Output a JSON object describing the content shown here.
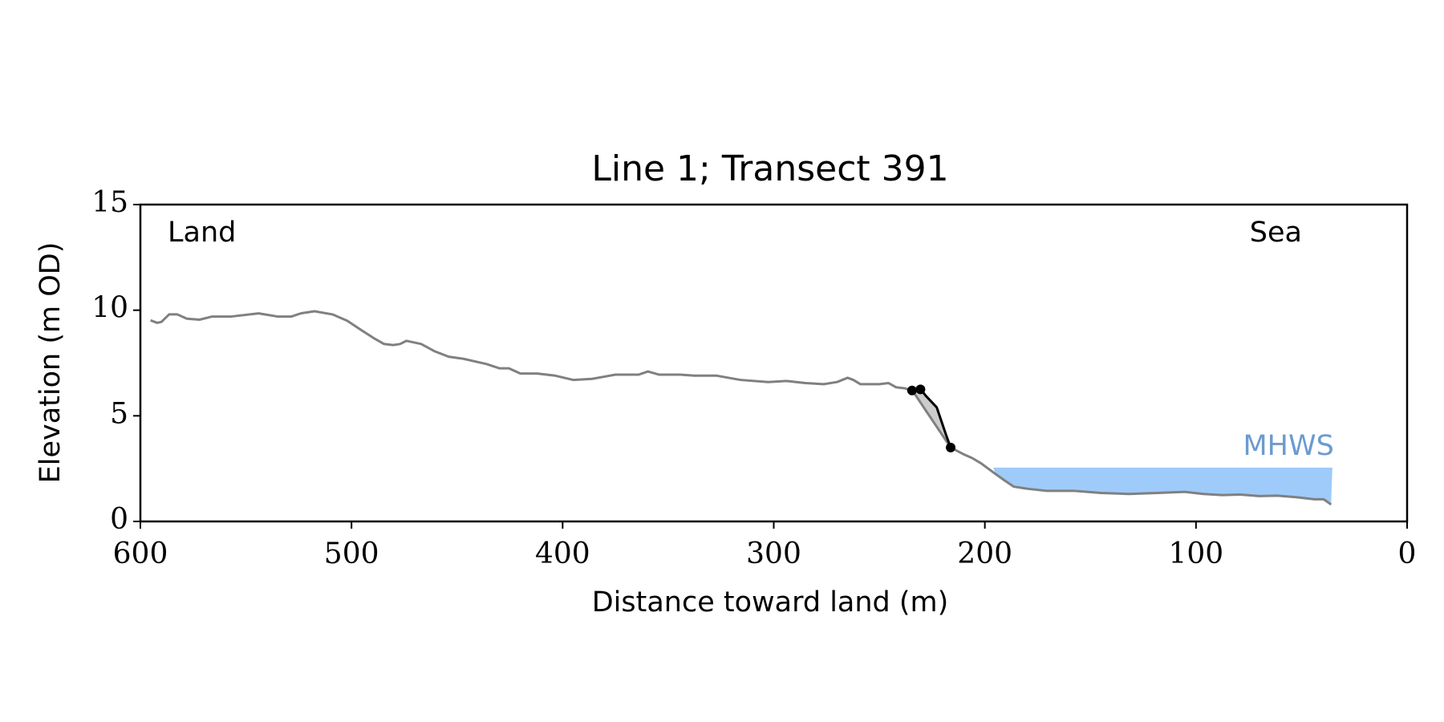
{
  "chart_data": {
    "type": "line",
    "title": "Line 1; Transect 391",
    "xlabel": "Distance toward land (m)",
    "ylabel": "Elevation (m OD)",
    "xlim": [
      600,
      0
    ],
    "ylim": [
      0,
      15
    ],
    "xticks": [
      600,
      500,
      400,
      300,
      200,
      100,
      0
    ],
    "yticks": [
      0,
      5,
      10,
      15
    ],
    "annotations": [
      "Land",
      "Sea"
    ],
    "profile": {
      "color": "#808080",
      "x": [
        595.2,
        592,
        590,
        586.4,
        582.5,
        578,
        572,
        566,
        557,
        544,
        535,
        528.5,
        524,
        517.5,
        509,
        502,
        496,
        489,
        484.6,
        480.3,
        477,
        474,
        467,
        460.5,
        454,
        447,
        436,
        430,
        425.5,
        420,
        412,
        403.5,
        395,
        386,
        375,
        364,
        359.6,
        354.4,
        344.3,
        337.7,
        327,
        315.8,
        302.6,
        294,
        285,
        276.3,
        270,
        265,
        262.3,
        259,
        250,
        245.6,
        242,
        237.7,
        234,
        216.2,
        210.5,
        206,
        201.8,
        195,
        190.8,
        186.4,
        180,
        171,
        158,
        145,
        131.6,
        118.4,
        105.3,
        96.5,
        87.7,
        79,
        70,
        61.4,
        52.6,
        43.9,
        39.5,
        36
      ],
      "values": [
        9.52,
        9.4,
        9.45,
        9.8,
        9.8,
        9.6,
        9.55,
        9.7,
        9.7,
        9.85,
        9.7,
        9.7,
        9.85,
        9.95,
        9.8,
        9.5,
        9.1,
        8.65,
        8.4,
        8.35,
        8.4,
        8.55,
        8.4,
        8.05,
        7.8,
        7.7,
        7.45,
        7.25,
        7.25,
        7.0,
        7.0,
        6.9,
        6.7,
        6.75,
        6.95,
        6.95,
        7.1,
        6.95,
        6.95,
        6.9,
        6.9,
        6.7,
        6.6,
        6.65,
        6.55,
        6.5,
        6.6,
        6.8,
        6.7,
        6.5,
        6.5,
        6.55,
        6.35,
        6.3,
        6.15,
        3.5,
        3.2,
        3.0,
        2.75,
        2.25,
        1.95,
        1.65,
        1.55,
        1.45,
        1.45,
        1.35,
        1.3,
        1.35,
        1.4,
        1.3,
        1.25,
        1.27,
        1.2,
        1.22,
        1.15,
        1.05,
        1.05,
        0.8
      ]
    },
    "cliff": {
      "color": "#000000",
      "shade": "#cccccc",
      "x": [
        234.6,
        230.3,
        228,
        222.8,
        220.6,
        218.4,
        216.2
      ],
      "values": [
        6.2,
        6.25,
        5.95,
        5.4,
        4.75,
        4.1,
        3.5
      ]
    },
    "cliff_points": {
      "color": "#000000",
      "x": [
        234.5,
        230.5,
        216.2
      ],
      "values": [
        6.2,
        6.25,
        3.5
      ]
    },
    "mhws": {
      "label": "MHWS",
      "level": 2.55,
      "x_range": [
        196,
        35.4
      ],
      "color": "#9fcbfa",
      "label_color": "#6b9bd0"
    }
  }
}
